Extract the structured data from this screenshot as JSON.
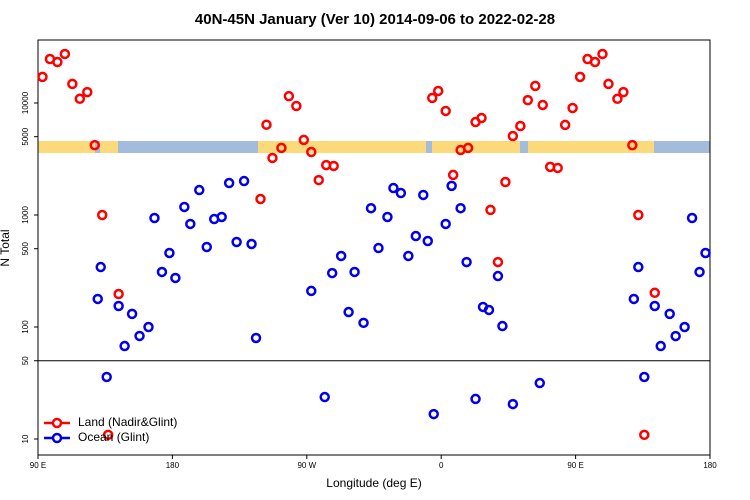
{
  "chart_data": {
    "type": "scatter",
    "title": "40N-45N January (Ver 10)   2014-09-06 to 2022-02-28",
    "x_label": "Longitude (deg E)",
    "y_label": "N Total",
    "xlim": [
      90,
      540
    ],
    "ylim": [
      7.2,
      36500
    ],
    "y_log": true,
    "xticks": [
      {
        "value": 90,
        "label": "90 E"
      },
      180,
      {
        "value": 270,
        "label": "90 W"
      },
      {
        "value": 360,
        "label": "0"
      },
      {
        "value": 450,
        "label": "90 E"
      },
      {
        "value": 540,
        "label": "180"
      }
    ],
    "yticks": [
      10,
      50,
      100,
      500,
      1000,
      5000,
      10000
    ],
    "hline": 50,
    "legend": "bottom-left",
    "series": [
      {
        "name": "Land (Nadir&Glint)",
        "color": "#ff0000",
        "x": [
          93,
          98,
          103,
          108,
          113,
          118,
          123,
          128,
          133,
          144,
          137,
          239,
          243,
          247,
          253,
          258,
          263,
          268,
          273,
          278,
          283,
          288,
          354,
          358,
          363,
          368,
          373,
          378,
          383,
          387,
          393,
          398,
          403,
          408,
          413,
          418,
          423,
          428,
          433,
          438,
          443,
          448,
          453,
          458,
          463,
          468,
          472,
          478,
          482,
          488,
          492,
          503,
          496
        ],
        "values": [
          17100,
          24700,
          23200,
          27400,
          14800,
          10900,
          12500,
          4200,
          1000,
          197,
          10.9,
          1390,
          6400,
          3230,
          3970,
          11500,
          9400,
          4680,
          3650,
          2050,
          2790,
          2740,
          11100,
          12800,
          8490,
          2280,
          3800,
          3970,
          6760,
          7340,
          1110,
          380,
          1970,
          5070,
          6230,
          10600,
          14200,
          9600,
          2690,
          2630,
          6370,
          9020,
          17100,
          24700,
          23200,
          27400,
          14800,
          10900,
          12500,
          4200,
          1000,
          202,
          10.9
        ]
      },
      {
        "name": "Ocean (Glint)",
        "color": "#0000ee",
        "x": [
          130,
          132,
          136,
          144,
          148,
          153,
          158,
          164,
          168,
          173,
          178,
          182,
          188,
          192,
          198,
          203,
          208,
          213,
          218,
          223,
          228,
          233,
          236,
          273,
          282,
          287,
          293,
          298,
          302,
          308,
          313,
          318,
          324,
          328,
          333,
          338,
          343,
          348,
          351,
          355,
          363,
          367,
          373,
          377,
          383,
          388,
          392,
          398,
          401,
          408,
          426,
          489,
          492,
          496,
          503,
          507,
          513,
          517,
          523,
          528,
          533,
          537
        ],
        "values": [
          178,
          343,
          35.8,
          154,
          67.6,
          131,
          83.2,
          100,
          940,
          310,
          458,
          274,
          1180,
          832,
          1670,
          518,
          920,
          960,
          1930,
          574,
          2010,
          551,
          79.8,
          210,
          23.7,
          303,
          431,
          136,
          310,
          109,
          1150,
          507,
          960,
          1740,
          1570,
          431,
          649,
          1510,
          586,
          16.7,
          832,
          1820,
          1150,
          380,
          22.8,
          151,
          142,
          285,
          102,
          20.5,
          31.6,
          178,
          343,
          35.8,
          154,
          67.6,
          131,
          83,
          100,
          940,
          310,
          458
        ]
      }
    ]
  }
}
